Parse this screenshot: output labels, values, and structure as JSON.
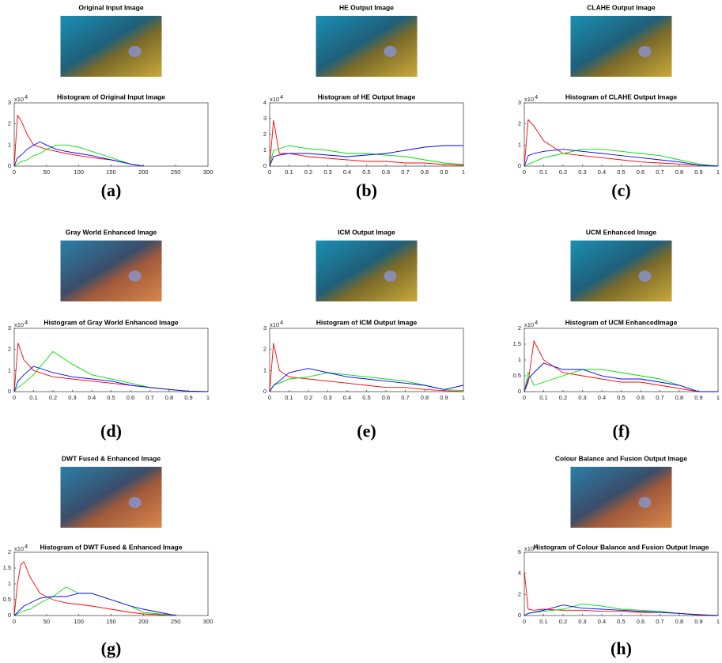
{
  "chart_data": [
    {
      "type": "line",
      "image_title": "Original Input Image",
      "title": "Histogram of Original Input Image",
      "panel_label": "(a)",
      "x": [
        0,
        5,
        10,
        20,
        30,
        40,
        50,
        65,
        80,
        100,
        120,
        150,
        180,
        200
      ],
      "series": [
        {
          "color": "#ff0000",
          "values": [
            0,
            2.4,
            2.2,
            1.5,
            1.0,
            0.9,
            0.8,
            0.7,
            0.6,
            0.5,
            0.4,
            0.3,
            0.1,
            0
          ]
        },
        {
          "color": "#00dd00",
          "values": [
            0,
            0.1,
            0.2,
            0.3,
            0.5,
            0.6,
            0.8,
            1.0,
            1.0,
            0.9,
            0.7,
            0.4,
            0.1,
            0
          ]
        },
        {
          "color": "#0000ff",
          "values": [
            0,
            0.4,
            0.5,
            0.8,
            1.0,
            1.15,
            1.0,
            0.8,
            0.7,
            0.6,
            0.5,
            0.3,
            0.1,
            0
          ]
        }
      ],
      "xlim": [
        0,
        300
      ],
      "xticks": [
        0,
        50,
        100,
        150,
        200,
        250,
        300
      ],
      "ylim": [
        0,
        3
      ],
      "yticks": [
        0,
        1,
        2,
        3
      ],
      "y_multiplier": {
        "base": "x10",
        "exponent": "4"
      }
    },
    {
      "type": "line",
      "image_title": "HE Output Image",
      "title": "Histogram of HE Output Image",
      "panel_label": "(b)",
      "x": [
        0,
        0.02,
        0.05,
        0.1,
        0.2,
        0.3,
        0.4,
        0.5,
        0.6,
        0.7,
        0.8,
        0.9,
        1
      ],
      "series": [
        {
          "color": "#ff0000",
          "values": [
            0,
            2.9,
            0.8,
            0.8,
            0.6,
            0.5,
            0.4,
            0.3,
            0.3,
            0.2,
            0.2,
            0.1,
            0.05
          ]
        },
        {
          "color": "#00dd00",
          "values": [
            0,
            1.0,
            1.1,
            1.3,
            1.1,
            1.0,
            0.8,
            0.8,
            0.7,
            0.6,
            0.4,
            0.2,
            0.1
          ]
        },
        {
          "color": "#0000ff",
          "values": [
            0,
            0.6,
            0.7,
            0.8,
            0.8,
            0.7,
            0.6,
            0.7,
            0.8,
            1.0,
            1.2,
            1.3,
            1.3
          ]
        }
      ],
      "xlim": [
        0,
        1
      ],
      "xticks": [
        0,
        0.1,
        0.2,
        0.3,
        0.4,
        0.5,
        0.6,
        0.7,
        0.8,
        0.9,
        1
      ],
      "ylim": [
        0,
        4
      ],
      "yticks": [
        0,
        1,
        2,
        3,
        4
      ],
      "y_multiplier": {
        "base": "x10",
        "exponent": "4"
      }
    },
    {
      "type": "line",
      "image_title": "CLAHE Output Image",
      "title": "Histogram of CLAHE Output Image",
      "panel_label": "(c)",
      "x": [
        0,
        0.02,
        0.05,
        0.1,
        0.2,
        0.3,
        0.4,
        0.5,
        0.6,
        0.7,
        0.8,
        0.9,
        1
      ],
      "series": [
        {
          "color": "#ff0000",
          "values": [
            0,
            2.2,
            1.9,
            1.2,
            0.6,
            0.5,
            0.4,
            0.3,
            0.2,
            0.15,
            0.1,
            0.05,
            0
          ]
        },
        {
          "color": "#00dd00",
          "values": [
            0,
            0.1,
            0.2,
            0.4,
            0.6,
            0.8,
            0.8,
            0.7,
            0.6,
            0.5,
            0.3,
            0.1,
            0
          ]
        },
        {
          "color": "#0000ff",
          "values": [
            0,
            0.5,
            0.6,
            0.7,
            0.8,
            0.7,
            0.6,
            0.5,
            0.4,
            0.3,
            0.2,
            0.05,
            0
          ]
        }
      ],
      "xlim": [
        0,
        1
      ],
      "xticks": [
        0,
        0.1,
        0.2,
        0.3,
        0.4,
        0.5,
        0.6,
        0.7,
        0.8,
        0.9,
        1
      ],
      "ylim": [
        0,
        3
      ],
      "yticks": [
        0,
        1,
        2,
        3
      ],
      "y_multiplier": {
        "base": "x10",
        "exponent": "4"
      }
    },
    {
      "type": "line",
      "image_title": "Gray World Enhanced Image",
      "title": "Histogram of Gray World Enhanced Image",
      "panel_label": "(d)",
      "x": [
        0,
        0.02,
        0.05,
        0.1,
        0.2,
        0.3,
        0.4,
        0.5,
        0.6,
        0.7,
        0.8,
        0.9,
        1
      ],
      "series": [
        {
          "color": "#ff0000",
          "values": [
            0,
            2.3,
            1.5,
            1.0,
            0.7,
            0.6,
            0.5,
            0.4,
            0.3,
            0.2,
            0.1,
            0.02,
            0
          ]
        },
        {
          "color": "#00dd00",
          "values": [
            0,
            0.2,
            0.4,
            0.8,
            1.9,
            1.3,
            0.8,
            0.6,
            0.4,
            0.2,
            0.1,
            0.02,
            0
          ]
        },
        {
          "color": "#0000ff",
          "values": [
            0,
            0.5,
            0.8,
            1.2,
            0.9,
            0.7,
            0.6,
            0.5,
            0.3,
            0.2,
            0.1,
            0.02,
            0
          ]
        }
      ],
      "xlim": [
        0,
        1
      ],
      "xticks": [
        0,
        0.1,
        0.2,
        0.3,
        0.4,
        0.5,
        0.6,
        0.7,
        0.8,
        0.9,
        1
      ],
      "ylim": [
        0,
        3
      ],
      "yticks": [
        0,
        1,
        2,
        3
      ],
      "y_multiplier": {
        "base": "x10",
        "exponent": "4"
      }
    },
    {
      "type": "line",
      "image_title": "ICM Output Image",
      "title": "Histogram of ICM Output Image",
      "panel_label": "(e)",
      "x": [
        0,
        0.02,
        0.05,
        0.1,
        0.2,
        0.3,
        0.4,
        0.5,
        0.6,
        0.7,
        0.8,
        0.9,
        1
      ],
      "series": [
        {
          "color": "#ff0000",
          "values": [
            0,
            2.3,
            1.0,
            0.7,
            0.6,
            0.5,
            0.4,
            0.3,
            0.2,
            0.2,
            0.1,
            0.05,
            0
          ]
        },
        {
          "color": "#00dd00",
          "values": [
            0,
            0.3,
            0.4,
            0.6,
            0.7,
            0.9,
            0.8,
            0.7,
            0.6,
            0.5,
            0.3,
            0.1,
            0.05
          ]
        },
        {
          "color": "#0000ff",
          "values": [
            0,
            0.3,
            0.5,
            0.9,
            1.1,
            0.9,
            0.7,
            0.6,
            0.5,
            0.4,
            0.3,
            0.1,
            0.3
          ]
        }
      ],
      "xlim": [
        0,
        1
      ],
      "xticks": [
        0,
        0.1,
        0.2,
        0.3,
        0.4,
        0.5,
        0.6,
        0.7,
        0.8,
        0.9,
        1
      ],
      "ylim": [
        0,
        3
      ],
      "yticks": [
        0,
        1,
        2,
        3
      ],
      "y_multiplier": {
        "base": "x10",
        "exponent": "4"
      }
    },
    {
      "type": "line",
      "image_title": "UCM Enhanced Image",
      "title": "Histogram of UCM EnhancedImage",
      "panel_label": "(f)",
      "x": [
        0,
        0.02,
        0.05,
        0.1,
        0.2,
        0.3,
        0.4,
        0.5,
        0.6,
        0.7,
        0.8,
        0.9,
        1
      ],
      "series": [
        {
          "color": "#ff0000",
          "values": [
            0,
            0.3,
            1.6,
            1.0,
            0.6,
            0.5,
            0.4,
            0.3,
            0.3,
            0.2,
            0.1,
            0,
            0
          ]
        },
        {
          "color": "#00dd00",
          "values": [
            0,
            0.6,
            0.2,
            0.3,
            0.5,
            0.7,
            0.7,
            0.6,
            0.5,
            0.4,
            0.2,
            0,
            0
          ]
        },
        {
          "color": "#0000ff",
          "values": [
            0,
            0.4,
            0.6,
            0.9,
            0.7,
            0.7,
            0.5,
            0.4,
            0.4,
            0.3,
            0.2,
            0,
            0
          ]
        }
      ],
      "xlim": [
        0,
        1
      ],
      "xticks": [
        0,
        0.1,
        0.2,
        0.3,
        0.4,
        0.5,
        0.6,
        0.7,
        0.8,
        0.9,
        1
      ],
      "ylim": [
        0,
        2
      ],
      "yticks": [
        0,
        0.5,
        1,
        1.5,
        2
      ],
      "y_multiplier": {
        "base": "x10",
        "exponent": "4"
      }
    },
    {
      "type": "line",
      "image_title": "DWT Fused & Enhanced Image",
      "title": "Histogram of DWT Fused & Enhanced Image",
      "panel_label": "(g)",
      "x": [
        0,
        5,
        10,
        15,
        25,
        40,
        60,
        80,
        100,
        120,
        150,
        180,
        200,
        250
      ],
      "series": [
        {
          "color": "#ff0000",
          "values": [
            0,
            1.0,
            1.6,
            1.7,
            1.2,
            0.7,
            0.5,
            0.4,
            0.35,
            0.3,
            0.2,
            0.1,
            0.05,
            0
          ]
        },
        {
          "color": "#00dd00",
          "values": [
            0,
            0.05,
            0.1,
            0.15,
            0.2,
            0.4,
            0.6,
            0.9,
            0.7,
            0.7,
            0.5,
            0.3,
            0.1,
            0
          ]
        },
        {
          "color": "#0000ff",
          "values": [
            0,
            0.1,
            0.2,
            0.3,
            0.4,
            0.55,
            0.6,
            0.6,
            0.7,
            0.7,
            0.5,
            0.3,
            0.2,
            0
          ]
        }
      ],
      "xlim": [
        0,
        300
      ],
      "xticks": [
        0,
        50,
        100,
        150,
        200,
        250,
        300
      ],
      "ylim": [
        0,
        2
      ],
      "yticks": [
        0,
        0.5,
        1,
        1.5,
        2
      ],
      "y_multiplier": {
        "base": "x10",
        "exponent": "4"
      }
    },
    {
      "type": "line",
      "image_title": "Colour Balance and Fusion Output Image",
      "title": "Histogram of Colour Balance and Fusion Output Image",
      "panel_label": "(h)",
      "x": [
        0,
        0.02,
        0.05,
        0.1,
        0.2,
        0.3,
        0.4,
        0.5,
        0.6,
        0.7,
        0.8,
        0.9,
        1
      ],
      "series": [
        {
          "color": "#ff0000",
          "values": [
            4.2,
            0.6,
            0.5,
            0.6,
            0.5,
            0.5,
            0.4,
            0.4,
            0.3,
            0.3,
            0.2,
            0.1,
            0
          ]
        },
        {
          "color": "#00dd00",
          "values": [
            0,
            0.2,
            0.3,
            0.4,
            0.6,
            1.1,
            0.9,
            0.6,
            0.5,
            0.4,
            0.2,
            0.05,
            0
          ]
        },
        {
          "color": "#0000ff",
          "values": [
            0,
            0.2,
            0.3,
            0.5,
            1.0,
            0.7,
            0.6,
            0.5,
            0.4,
            0.3,
            0.2,
            0.05,
            0
          ]
        }
      ],
      "xlim": [
        0,
        1
      ],
      "xticks": [
        0,
        0.1,
        0.2,
        0.3,
        0.4,
        0.5,
        0.6,
        0.7,
        0.8,
        0.9,
        1
      ],
      "ylim": [
        0,
        6
      ],
      "yticks": [
        0,
        2,
        4,
        6
      ],
      "y_multiplier": {
        "base": "x10",
        "exponent": "4"
      }
    }
  ]
}
